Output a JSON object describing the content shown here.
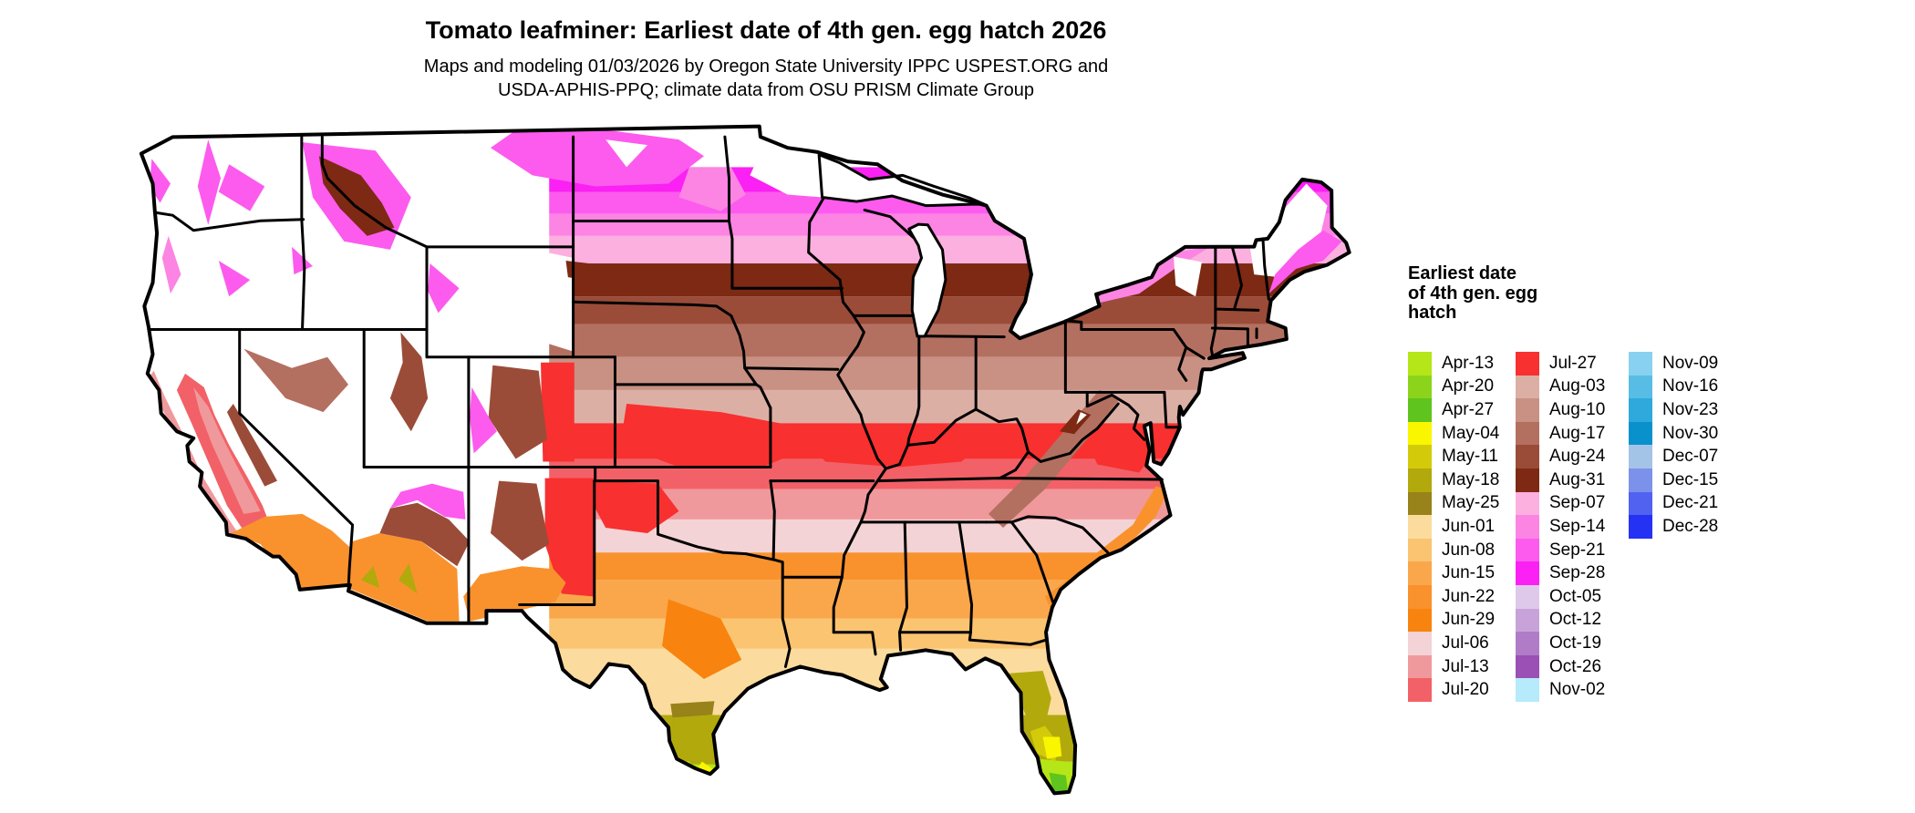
{
  "title": "Tomato leafminer: Earliest date of 4th gen. egg hatch 2026",
  "subtitle_line1": "Maps and modeling 01/03/2026 by Oregon State University IPPC USPEST.ORG and",
  "subtitle_line2": "USDA-APHIS-PPQ; climate data from OSU PRISM Climate Group",
  "legend": {
    "title_lines": [
      "Earliest date",
      "of 4th gen. egg",
      "hatch"
    ],
    "columns": [
      {
        "entries": [
          {
            "label": "Apr-13",
            "color": "#B5E617"
          },
          {
            "label": "Apr-20",
            "color": "#8BD41B"
          },
          {
            "label": "Apr-27",
            "color": "#5FC41D"
          },
          {
            "label": "May-04",
            "color": "#F9F600"
          },
          {
            "label": "May-11",
            "color": "#D3CB0A"
          },
          {
            "label": "May-18",
            "color": "#B2A90D"
          },
          {
            "label": "May-25",
            "color": "#97831A"
          },
          {
            "label": "Jun-01",
            "color": "#FBDC9E"
          },
          {
            "label": "Jun-08",
            "color": "#FBC471"
          },
          {
            "label": "Jun-15",
            "color": "#FAA74B"
          },
          {
            "label": "Jun-22",
            "color": "#F9922D"
          },
          {
            "label": "Jun-29",
            "color": "#F8830F"
          },
          {
            "label": "Jul-06",
            "color": "#F3D3D5"
          },
          {
            "label": "Jul-13",
            "color": "#F0999C"
          },
          {
            "label": "Jul-20",
            "color": "#F26167"
          }
        ]
      },
      {
        "entries": [
          {
            "label": "Jul-27",
            "color": "#F83030"
          },
          {
            "label": "Aug-03",
            "color": "#DCAFA5"
          },
          {
            "label": "Aug-10",
            "color": "#C89184"
          },
          {
            "label": "Aug-17",
            "color": "#B37060"
          },
          {
            "label": "Aug-24",
            "color": "#9A4C39"
          },
          {
            "label": "Aug-31",
            "color": "#7D2913"
          },
          {
            "label": "Sep-07",
            "color": "#FCB0DF"
          },
          {
            "label": "Sep-14",
            "color": "#FC84E3"
          },
          {
            "label": "Sep-21",
            "color": "#FC5BEE"
          },
          {
            "label": "Sep-28",
            "color": "#FB20F3"
          },
          {
            "label": "Oct-05",
            "color": "#DFC9EA"
          },
          {
            "label": "Oct-12",
            "color": "#C8A3D9"
          },
          {
            "label": "Oct-19",
            "color": "#B07CC8"
          },
          {
            "label": "Oct-26",
            "color": "#9B50B6"
          },
          {
            "label": "Nov-02",
            "color": "#B5EBFA"
          }
        ]
      },
      {
        "entries": [
          {
            "label": "Nov-09",
            "color": "#89D1F0"
          },
          {
            "label": "Nov-16",
            "color": "#58BDE5"
          },
          {
            "label": "Nov-23",
            "color": "#2FA9DC"
          },
          {
            "label": "Nov-30",
            "color": "#0991CB"
          },
          {
            "label": "Dec-07",
            "color": "#A4C4E7"
          },
          {
            "label": "Dec-15",
            "color": "#7C91EA"
          },
          {
            "label": "Dec-21",
            "color": "#5062EF"
          },
          {
            "label": "Dec-28",
            "color": "#2531F3"
          }
        ]
      }
    ]
  },
  "map": {
    "type": "choropleth raster",
    "region": "contiguous United States",
    "no_hatch_color": "#FFFFFF",
    "state_border_color": "#000000",
    "lat_bands": [
      {
        "from": 24.5,
        "to": 26.3,
        "date": "Apr-13"
      },
      {
        "from": 26.3,
        "to": 28.0,
        "date": "May-18"
      },
      {
        "from": 28.0,
        "to": 30.4,
        "date": "Jun-01"
      },
      {
        "from": 30.4,
        "to": 31.5,
        "date": "Jun-08"
      },
      {
        "from": 31.5,
        "to": 32.9,
        "date": "Jun-15"
      },
      {
        "from": 32.9,
        "to": 33.9,
        "date": "Jun-22"
      },
      {
        "from": 33.9,
        "to": 35.1,
        "date": "Jul-06"
      },
      {
        "from": 35.1,
        "to": 36.2,
        "date": "Jul-13"
      },
      {
        "from": 36.2,
        "to": 37.3,
        "date": "Jul-20"
      },
      {
        "from": 37.3,
        "to": 38.6,
        "date": "Jul-27"
      },
      {
        "from": 38.6,
        "to": 39.8,
        "date": "Aug-03"
      },
      {
        "from": 39.8,
        "to": 41.0,
        "date": "Aug-10"
      },
      {
        "from": 41.0,
        "to": 42.2,
        "date": "Aug-17"
      },
      {
        "from": 42.2,
        "to": 43.2,
        "date": "Aug-24"
      },
      {
        "from": 43.2,
        "to": 44.4,
        "date": "Aug-31"
      },
      {
        "from": 44.4,
        "to": 45.4,
        "date": "Sep-07"
      },
      {
        "from": 45.4,
        "to": 46.2,
        "date": "Sep-14"
      },
      {
        "from": 46.2,
        "to": 47.0,
        "date": "Sep-21"
      },
      {
        "from": 47.0,
        "to": 47.9,
        "date": "Sep-28"
      },
      {
        "from": 47.9,
        "to": 49.6,
        "date": "none"
      }
    ]
  }
}
